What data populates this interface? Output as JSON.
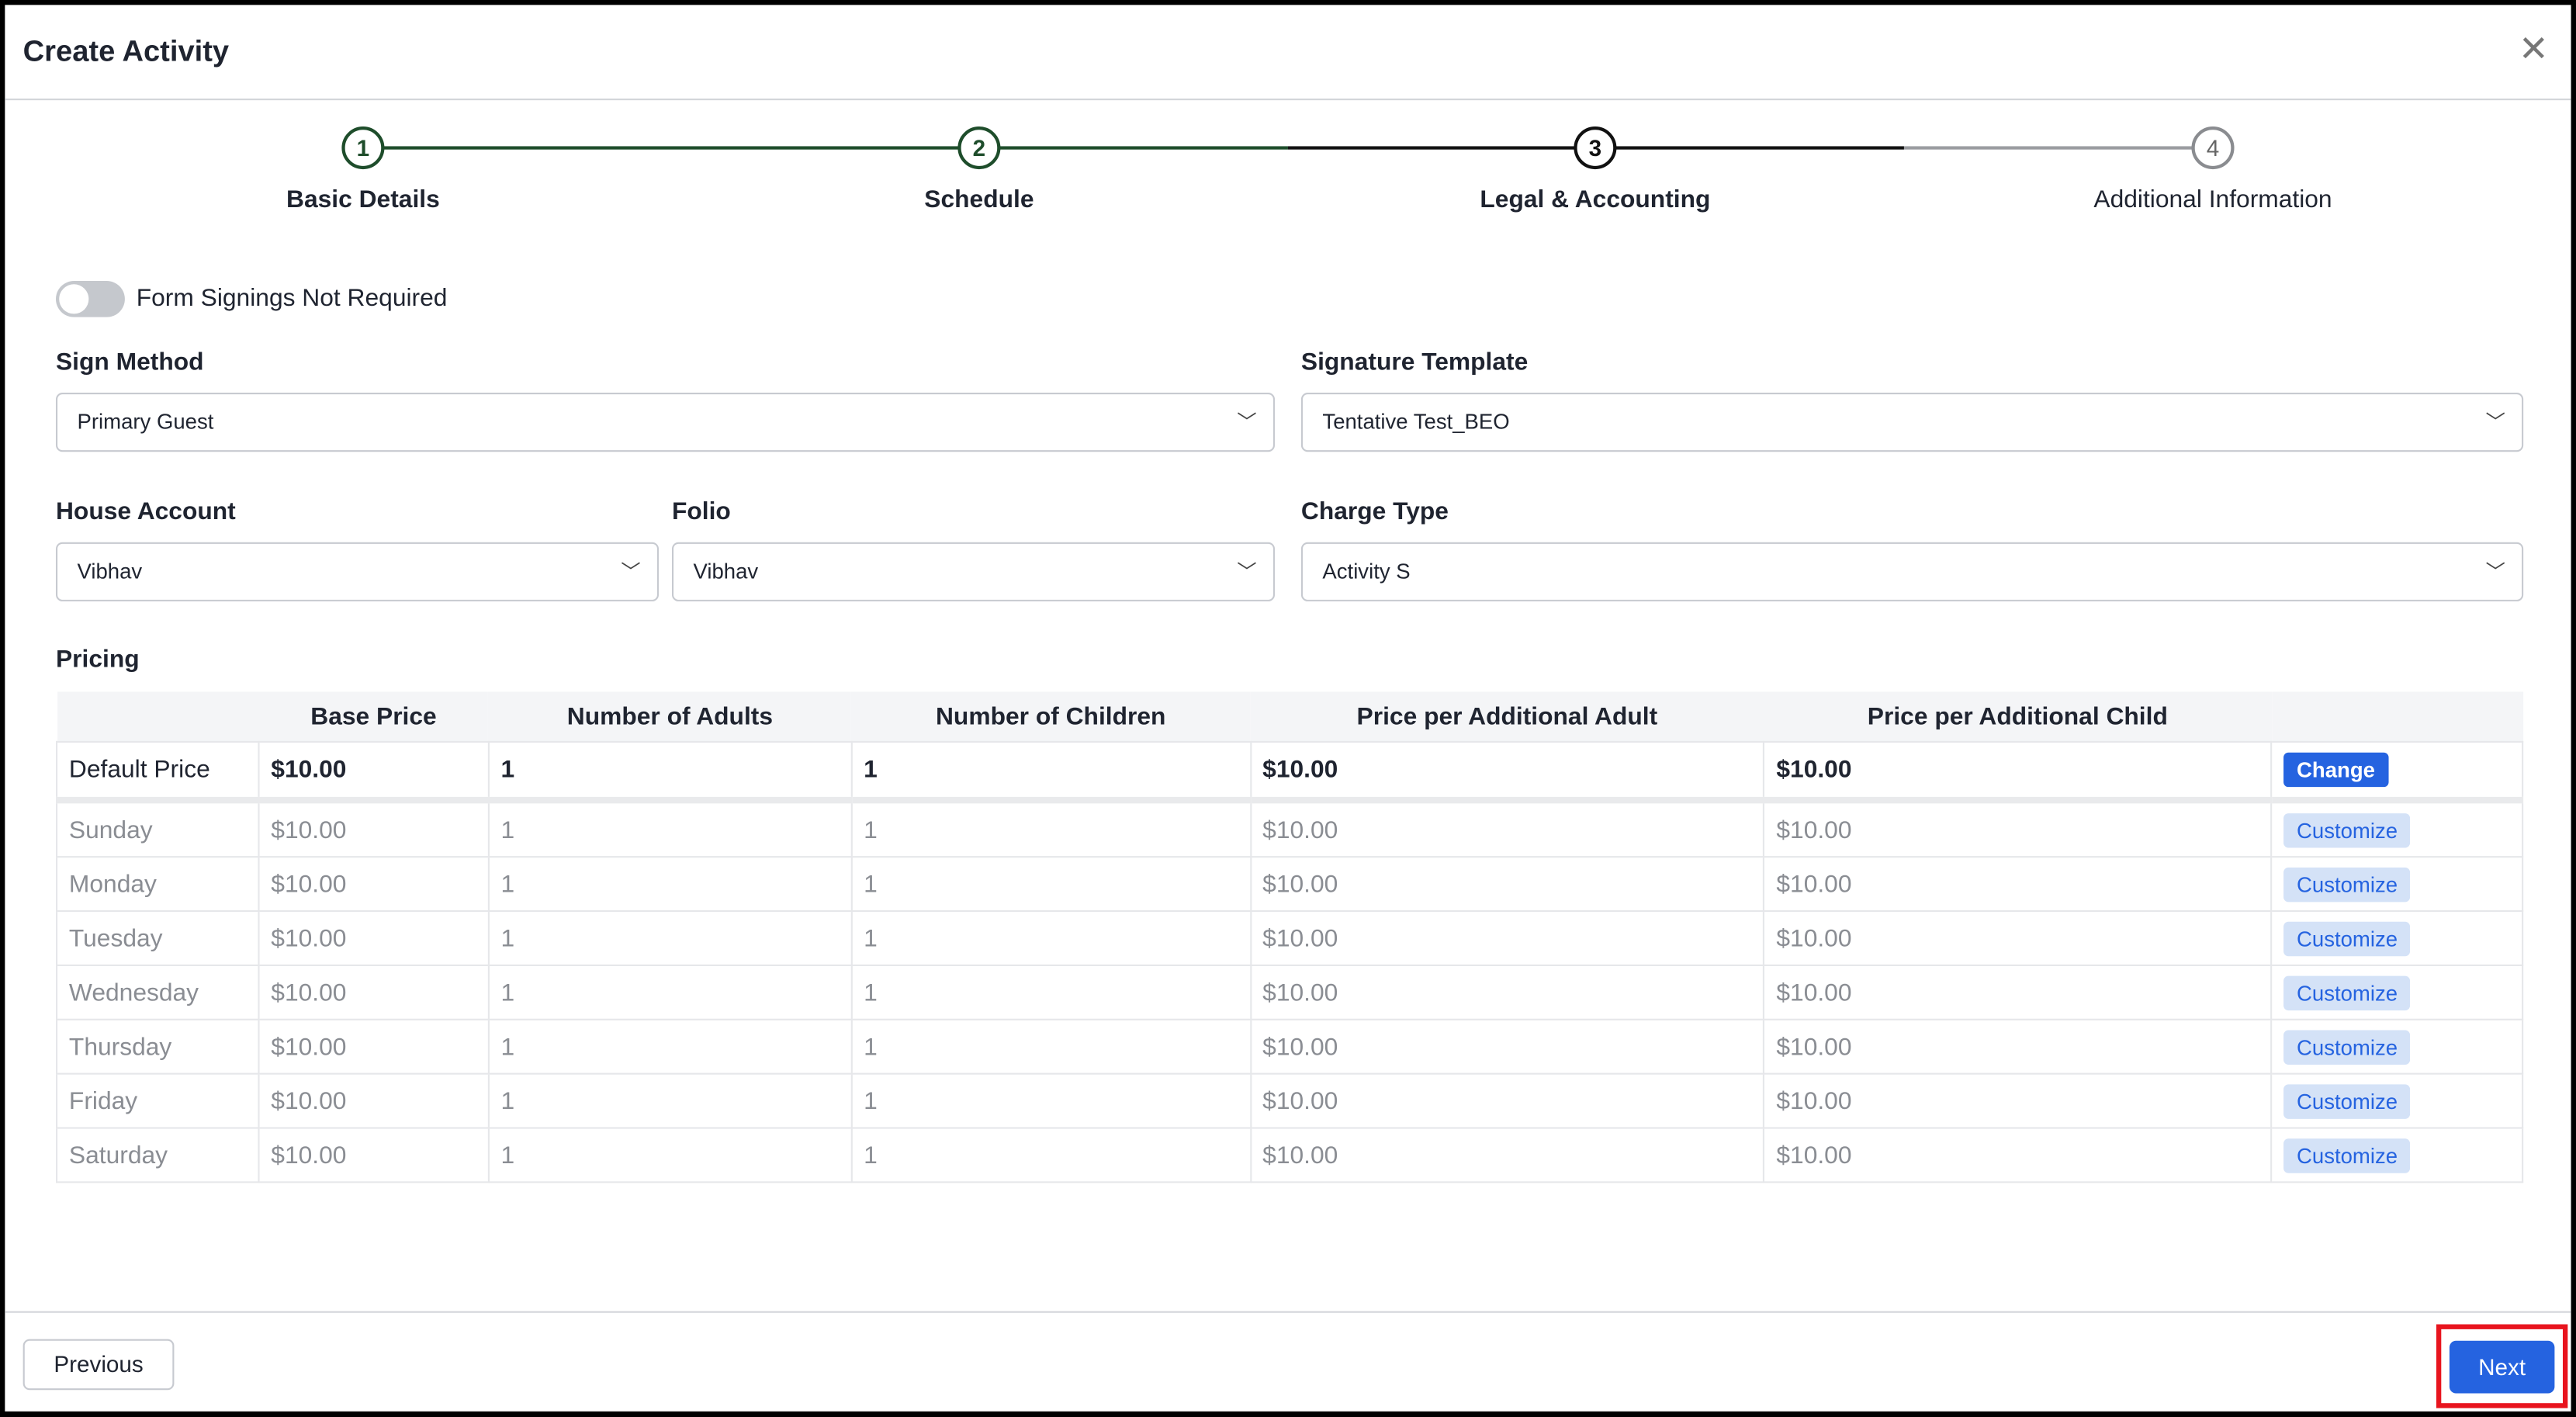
{
  "dialog": {
    "title": "Create Activity",
    "close_icon": "close-icon"
  },
  "stepper": {
    "steps": [
      {
        "number": "1",
        "label": "Basic Details",
        "state": "complete"
      },
      {
        "number": "2",
        "label": "Schedule",
        "state": "complete"
      },
      {
        "number": "3",
        "label": "Legal & Accounting",
        "state": "active"
      },
      {
        "number": "4",
        "label": "Additional Information",
        "state": "pending"
      }
    ]
  },
  "form": {
    "toggle_label": "Form Signings Not Required",
    "toggle_on": false,
    "sign_method": {
      "label": "Sign Method",
      "value": "Primary Guest"
    },
    "signature_template": {
      "label": "Signature Template",
      "value": "Tentative Test_BEO"
    },
    "house_account": {
      "label": "House Account",
      "value": "Vibhav"
    },
    "folio": {
      "label": "Folio",
      "value": "Vibhav"
    },
    "charge_type": {
      "label": "Charge Type",
      "value": "Activity S"
    }
  },
  "pricing": {
    "title": "Pricing",
    "headers": [
      "",
      "Base Price",
      "Number of Adults",
      "Number of Children",
      "Price per Additional Adult",
      "Price per Additional Child",
      ""
    ],
    "default_row": {
      "label": "Default Price",
      "cells": [
        "$10.00",
        "1",
        "1",
        "$10.00",
        "$10.00"
      ],
      "action": "Change"
    },
    "rows": [
      {
        "label": "Sunday",
        "cells": [
          "$10.00",
          "1",
          "1",
          "$10.00",
          "$10.00"
        ],
        "action": "Customize"
      },
      {
        "label": "Monday",
        "cells": [
          "$10.00",
          "1",
          "1",
          "$10.00",
          "$10.00"
        ],
        "action": "Customize"
      },
      {
        "label": "Tuesday",
        "cells": [
          "$10.00",
          "1",
          "1",
          "$10.00",
          "$10.00"
        ],
        "action": "Customize"
      },
      {
        "label": "Wednesday",
        "cells": [
          "$10.00",
          "1",
          "1",
          "$10.00",
          "$10.00"
        ],
        "action": "Customize"
      },
      {
        "label": "Thursday",
        "cells": [
          "$10.00",
          "1",
          "1",
          "$10.00",
          "$10.00"
        ],
        "action": "Customize"
      },
      {
        "label": "Friday",
        "cells": [
          "$10.00",
          "1",
          "1",
          "$10.00",
          "$10.00"
        ],
        "action": "Customize"
      },
      {
        "label": "Saturday",
        "cells": [
          "$10.00",
          "1",
          "1",
          "$10.00",
          "$10.00"
        ],
        "action": "Customize"
      }
    ]
  },
  "footer": {
    "previous": "Previous",
    "next": "Next"
  },
  "colors": {
    "accent": "#2563e0",
    "step_complete": "#1e4d2b",
    "highlight": "#e8141e"
  }
}
